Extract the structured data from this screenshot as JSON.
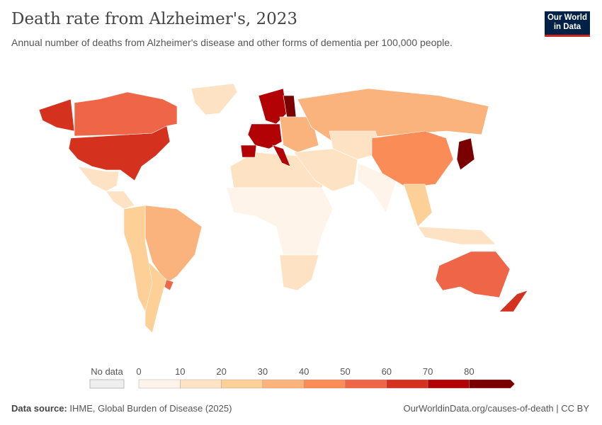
{
  "header": {
    "title": "Death rate from Alzheimer's, 2023",
    "subtitle": "Annual number of deaths from Alzheimer's disease and other forms of dementia per 100,000 people.",
    "logo": "Our World in Data"
  },
  "footer": {
    "source_label": "Data source:",
    "source": "IHME, Global Burden of Disease (2025)",
    "link": "OurWorldinData.org/causes-of-death | CC BY"
  },
  "chart_data": {
    "type": "choropleth",
    "title": "Death rate from Alzheimer's, 2023",
    "legend": {
      "no_data_label": "No data",
      "bins": [
        0,
        10,
        20,
        30,
        40,
        50,
        60,
        70,
        80
      ],
      "colors": [
        "#fef4ea",
        "#fde3c4",
        "#fcd097",
        "#fbb37d",
        "#f98c57",
        "#ee6548",
        "#d4321f",
        "#b20206",
        "#7a0000"
      ],
      "no_data_color": "#eeeeee"
    },
    "regions": [
      {
        "name": "United States",
        "value": 65
      },
      {
        "name": "Canada",
        "value": 55
      },
      {
        "name": "Alaska",
        "value": 65
      },
      {
        "name": "Greenland",
        "value": 15
      },
      {
        "name": "Mexico",
        "value": 15
      },
      {
        "name": "Central America",
        "value": 12
      },
      {
        "name": "Brazil",
        "value": 35
      },
      {
        "name": "Argentina",
        "value": 28
      },
      {
        "name": "Andean South America",
        "value": 20
      },
      {
        "name": "Uruguay",
        "value": 50
      },
      {
        "name": "North Africa",
        "value": 12
      },
      {
        "name": "Sub-Saharan Africa",
        "value": 5
      },
      {
        "name": "Southern Africa",
        "value": 15
      },
      {
        "name": "Western Europe",
        "value": 75
      },
      {
        "name": "Spain",
        "value": 72
      },
      {
        "name": "Italy",
        "value": 72
      },
      {
        "name": "Nordics",
        "value": 70
      },
      {
        "name": "Finland",
        "value": 85
      },
      {
        "name": "Eastern Europe",
        "value": 35
      },
      {
        "name": "Russia",
        "value": 32
      },
      {
        "name": "Middle East",
        "value": 12
      },
      {
        "name": "Central Asia",
        "value": 10
      },
      {
        "name": "India",
        "value": 8
      },
      {
        "name": "China",
        "value": 45
      },
      {
        "name": "Southeast Asia",
        "value": 25
      },
      {
        "name": "Indonesia",
        "value": 15
      },
      {
        "name": "Japan",
        "value": 85
      },
      {
        "name": "Australia",
        "value": 55
      },
      {
        "name": "New Zealand",
        "value": 60
      }
    ]
  }
}
